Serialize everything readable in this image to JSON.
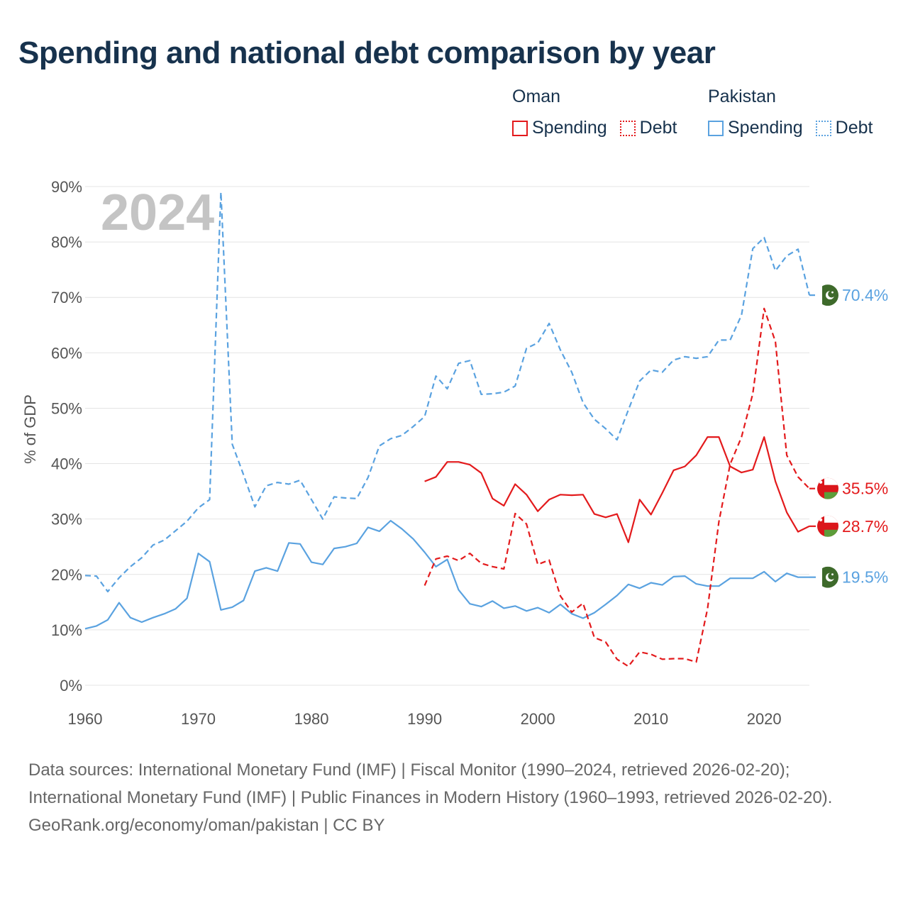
{
  "title": "Spending and national debt comparison by year",
  "legend": {
    "groups": [
      {
        "name": "Oman",
        "items": [
          "Spending",
          "Debt"
        ]
      },
      {
        "name": "Pakistan",
        "items": [
          "Spending",
          "Debt"
        ]
      }
    ]
  },
  "colors": {
    "oman": "#e31a1c",
    "pakistan": "#5aa2e0",
    "grid": "#e4e4e4",
    "watermark": "#c4c4c4"
  },
  "icons": {
    "oman": "oman-flag-icon",
    "pakistan": "pakistan-flag-icon"
  },
  "footer": {
    "sources": "Data sources: International Monetary Fund (IMF) | Fiscal Monitor (1990–2024, retrieved 2026-02-20); International Monetary Fund (IMF) | Public Finances in Modern History (1960–1993, retrieved 2026-02-20).",
    "credit": "GeoRank.org/economy/oman/pakistan | CC BY"
  },
  "chart_data": {
    "type": "line",
    "title": "Spending and national debt comparison by year",
    "year_display": "2024",
    "xlabel": "",
    "ylabel": "% of GDP",
    "xlim": [
      1960,
      2024
    ],
    "ylim": [
      0,
      90
    ],
    "xticks": [
      1960,
      1970,
      1980,
      1990,
      2000,
      2010,
      2020
    ],
    "yticks": [
      0,
      10,
      20,
      30,
      40,
      50,
      60,
      70,
      80,
      90
    ],
    "ytick_labels": [
      "0%",
      "10%",
      "20%",
      "30%",
      "40%",
      "50%",
      "60%",
      "70%",
      "80%",
      "90%"
    ],
    "grid": true,
    "series": [
      {
        "id": "pakistan-debt",
        "country": "Pakistan",
        "name": "Debt",
        "style": "dashed",
        "color": "#5aa2e0",
        "end_label": "70.4%",
        "points": [
          [
            1960,
            19.8
          ],
          [
            1961,
            19.7
          ],
          [
            1962,
            16.9
          ],
          [
            1963,
            19.4
          ],
          [
            1964,
            21.4
          ],
          [
            1965,
            23.0
          ],
          [
            1966,
            25.3
          ],
          [
            1967,
            26.2
          ],
          [
            1968,
            27.9
          ],
          [
            1969,
            29.6
          ],
          [
            1970,
            32.0
          ],
          [
            1971,
            33.5
          ],
          [
            1972,
            89.0
          ],
          [
            1973,
            43.5
          ],
          [
            1974,
            38.0
          ],
          [
            1975,
            32.2
          ],
          [
            1976,
            36.0
          ],
          [
            1977,
            36.6
          ],
          [
            1978,
            36.3
          ],
          [
            1979,
            37.0
          ],
          [
            1980,
            33.5
          ],
          [
            1981,
            30.0
          ],
          [
            1982,
            34.0
          ],
          [
            1983,
            33.8
          ],
          [
            1984,
            33.7
          ],
          [
            1985,
            37.5
          ],
          [
            1986,
            43.2
          ],
          [
            1987,
            44.5
          ],
          [
            1988,
            45.1
          ],
          [
            1989,
            46.7
          ],
          [
            1990,
            48.5
          ],
          [
            1991,
            55.8
          ],
          [
            1992,
            53.5
          ],
          [
            1993,
            58.1
          ],
          [
            1994,
            58.6
          ],
          [
            1995,
            52.5
          ],
          [
            1996,
            52.6
          ],
          [
            1997,
            52.9
          ],
          [
            1998,
            54.0
          ],
          [
            1999,
            60.8
          ],
          [
            2000,
            61.8
          ],
          [
            2001,
            65.3
          ],
          [
            2002,
            60.5
          ],
          [
            2003,
            56.5
          ],
          [
            2004,
            51.0
          ],
          [
            2005,
            48.0
          ],
          [
            2006,
            46.3
          ],
          [
            2007,
            44.3
          ],
          [
            2008,
            49.7
          ],
          [
            2009,
            54.9
          ],
          [
            2010,
            56.9
          ],
          [
            2011,
            56.5
          ],
          [
            2012,
            58.7
          ],
          [
            2013,
            59.3
          ],
          [
            2014,
            59.0
          ],
          [
            2015,
            59.3
          ],
          [
            2016,
            62.3
          ],
          [
            2017,
            62.3
          ],
          [
            2018,
            66.8
          ],
          [
            2019,
            78.8
          ],
          [
            2020,
            80.8
          ],
          [
            2021,
            74.8
          ],
          [
            2022,
            77.5
          ],
          [
            2023,
            78.7
          ],
          [
            2024,
            70.4
          ]
        ]
      },
      {
        "id": "pakistan-spending",
        "country": "Pakistan",
        "name": "Spending",
        "style": "solid",
        "color": "#5aa2e0",
        "end_label": "19.5%",
        "points": [
          [
            1960,
            10.2
          ],
          [
            1961,
            10.7
          ],
          [
            1962,
            11.8
          ],
          [
            1963,
            14.9
          ],
          [
            1964,
            12.2
          ],
          [
            1965,
            11.4
          ],
          [
            1966,
            12.2
          ],
          [
            1967,
            12.9
          ],
          [
            1968,
            13.8
          ],
          [
            1969,
            15.7
          ],
          [
            1970,
            23.8
          ],
          [
            1971,
            22.3
          ],
          [
            1972,
            13.6
          ],
          [
            1973,
            14.1
          ],
          [
            1974,
            15.3
          ],
          [
            1975,
            20.6
          ],
          [
            1976,
            21.2
          ],
          [
            1977,
            20.6
          ],
          [
            1978,
            25.7
          ],
          [
            1979,
            25.5
          ],
          [
            1980,
            22.2
          ],
          [
            1981,
            21.8
          ],
          [
            1982,
            24.7
          ],
          [
            1983,
            25.0
          ],
          [
            1984,
            25.6
          ],
          [
            1985,
            28.5
          ],
          [
            1986,
            27.8
          ],
          [
            1987,
            29.7
          ],
          [
            1988,
            28.2
          ],
          [
            1989,
            26.4
          ],
          [
            1990,
            24.0
          ],
          [
            1991,
            21.4
          ],
          [
            1992,
            22.7
          ],
          [
            1993,
            17.2
          ],
          [
            1994,
            14.7
          ],
          [
            1995,
            14.2
          ],
          [
            1996,
            15.2
          ],
          [
            1997,
            13.9
          ],
          [
            1998,
            14.3
          ],
          [
            1999,
            13.4
          ],
          [
            2000,
            14.0
          ],
          [
            2001,
            13.1
          ],
          [
            2002,
            14.6
          ],
          [
            2003,
            12.9
          ],
          [
            2004,
            12.1
          ],
          [
            2005,
            13.1
          ],
          [
            2006,
            14.6
          ],
          [
            2007,
            16.2
          ],
          [
            2008,
            18.2
          ],
          [
            2009,
            17.5
          ],
          [
            2010,
            18.5
          ],
          [
            2011,
            18.1
          ],
          [
            2012,
            19.6
          ],
          [
            2013,
            19.7
          ],
          [
            2014,
            18.3
          ],
          [
            2015,
            17.9
          ],
          [
            2016,
            17.9
          ],
          [
            2017,
            19.3
          ],
          [
            2018,
            19.3
          ],
          [
            2019,
            19.3
          ],
          [
            2020,
            20.5
          ],
          [
            2021,
            18.7
          ],
          [
            2022,
            20.2
          ],
          [
            2023,
            19.5
          ],
          [
            2024,
            19.5
          ]
        ]
      },
      {
        "id": "oman-spending",
        "country": "Oman",
        "name": "Spending",
        "style": "solid",
        "color": "#e31a1c",
        "end_label": "28.7%",
        "points": [
          [
            1990,
            36.8
          ],
          [
            1991,
            37.6
          ],
          [
            1992,
            40.3
          ],
          [
            1993,
            40.3
          ],
          [
            1994,
            39.8
          ],
          [
            1995,
            38.3
          ],
          [
            1996,
            33.7
          ],
          [
            1997,
            32.4
          ],
          [
            1998,
            36.3
          ],
          [
            1999,
            34.4
          ],
          [
            2000,
            31.4
          ],
          [
            2001,
            33.5
          ],
          [
            2002,
            34.4
          ],
          [
            2003,
            34.3
          ],
          [
            2004,
            34.4
          ],
          [
            2005,
            30.9
          ],
          [
            2006,
            30.3
          ],
          [
            2007,
            30.9
          ],
          [
            2008,
            25.8
          ],
          [
            2009,
            33.5
          ],
          [
            2010,
            30.8
          ],
          [
            2011,
            34.7
          ],
          [
            2012,
            38.8
          ],
          [
            2013,
            39.5
          ],
          [
            2014,
            41.5
          ],
          [
            2015,
            44.8
          ],
          [
            2016,
            44.8
          ],
          [
            2017,
            39.5
          ],
          [
            2018,
            38.4
          ],
          [
            2019,
            38.9
          ],
          [
            2020,
            44.8
          ],
          [
            2021,
            36.8
          ],
          [
            2022,
            31.2
          ],
          [
            2023,
            27.7
          ],
          [
            2024,
            28.7
          ]
        ]
      },
      {
        "id": "oman-debt",
        "country": "Oman",
        "name": "Debt",
        "style": "dashed",
        "color": "#e31a1c",
        "end_label": "35.5%",
        "points": [
          [
            1990,
            18.0
          ],
          [
            1991,
            22.8
          ],
          [
            1992,
            23.3
          ],
          [
            1993,
            22.5
          ],
          [
            1994,
            23.8
          ],
          [
            1995,
            22.0
          ],
          [
            1996,
            21.4
          ],
          [
            1997,
            21.0
          ],
          [
            1998,
            31.0
          ],
          [
            1999,
            29.1
          ],
          [
            2000,
            21.8
          ],
          [
            2001,
            22.6
          ],
          [
            2002,
            16.1
          ],
          [
            2003,
            13.2
          ],
          [
            2004,
            14.8
          ],
          [
            2005,
            8.6
          ],
          [
            2006,
            7.8
          ],
          [
            2007,
            4.7
          ],
          [
            2008,
            3.4
          ],
          [
            2009,
            6.0
          ],
          [
            2010,
            5.6
          ],
          [
            2011,
            4.7
          ],
          [
            2012,
            4.8
          ],
          [
            2013,
            4.8
          ],
          [
            2014,
            4.2
          ],
          [
            2015,
            13.8
          ],
          [
            2016,
            29.5
          ],
          [
            2017,
            39.9
          ],
          [
            2018,
            44.8
          ],
          [
            2019,
            52.6
          ],
          [
            2020,
            68.0
          ],
          [
            2021,
            62.0
          ],
          [
            2022,
            41.5
          ],
          [
            2023,
            37.6
          ],
          [
            2024,
            35.5
          ]
        ]
      }
    ]
  }
}
